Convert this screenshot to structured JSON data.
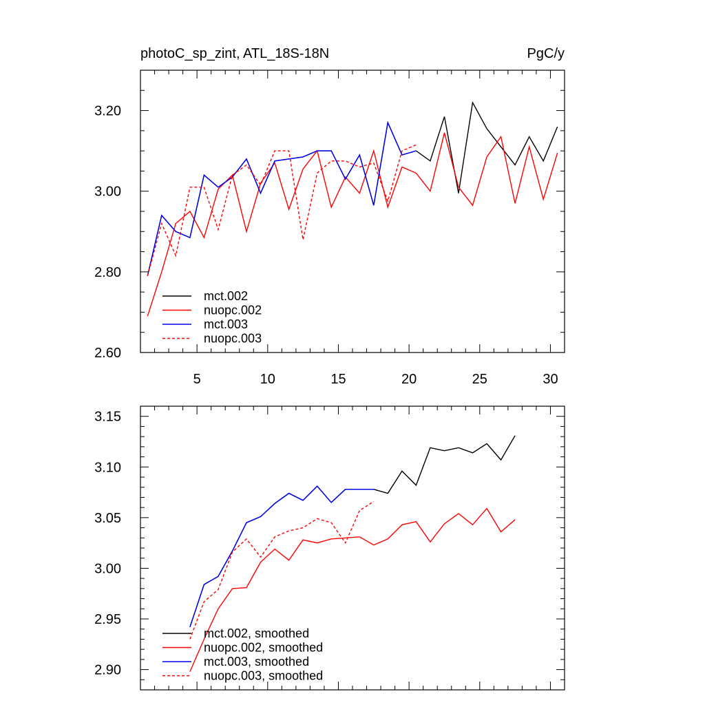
{
  "chart_data": [
    {
      "type": "line",
      "title": "photoC_sp_zint, ATL_18S-18N",
      "units": "PgC/y",
      "xlim": [
        1,
        31
      ],
      "ylim": [
        2.6,
        3.3
      ],
      "x_major_ticks": [
        5,
        10,
        15,
        20,
        25,
        30
      ],
      "x_tick_labels": [
        "5",
        "10",
        "15",
        "20",
        "25",
        "30"
      ],
      "y_major_ticks": [
        2.6,
        2.8,
        3.0,
        3.2
      ],
      "y_tick_labels": [
        "2.60",
        "2.80",
        "3.00",
        "3.20"
      ],
      "legend_placement": "bottom-left",
      "grid": false,
      "series": [
        {
          "name": "mct.002",
          "color": "#000000",
          "dash": "solid",
          "x": [
            1.5,
            2.5,
            3.5,
            4.5,
            5.5,
            6.5,
            7.5,
            8.5,
            9.5,
            10.5,
            11.5,
            12.5,
            13.5,
            14.5,
            15.5,
            16.5,
            17.5,
            18.5,
            19.5,
            20.5,
            21.5,
            22.5,
            23.5,
            24.5,
            25.5,
            26.5,
            27.5,
            28.5,
            29.5,
            30.5
          ],
          "y": [
            2.79,
            2.94,
            2.9,
            2.885,
            3.04,
            3.01,
            3.035,
            3.08,
            2.995,
            3.075,
            3.08,
            3.085,
            3.1,
            3.1,
            3.03,
            3.09,
            2.965,
            3.17,
            3.09,
            3.1,
            3.075,
            3.185,
            2.995,
            3.22,
            3.155,
            3.11,
            3.065,
            3.135,
            3.075,
            3.16
          ]
        },
        {
          "name": "nuopc.002",
          "color": "#ff0000",
          "dash": "solid",
          "x": [
            1.5,
            2.5,
            3.5,
            4.5,
            5.5,
            6.5,
            7.5,
            8.5,
            9.5,
            10.5,
            11.5,
            12.5,
            13.5,
            14.5,
            15.5,
            16.5,
            17.5,
            18.5,
            19.5,
            20.5,
            21.5,
            22.5,
            23.5,
            24.5,
            25.5,
            26.5,
            27.5,
            28.5,
            29.5,
            30.5
          ],
          "y": [
            2.69,
            2.8,
            2.92,
            2.95,
            2.885,
            3.005,
            3.04,
            2.9,
            3.02,
            3.07,
            2.955,
            3.055,
            3.1,
            2.96,
            3.035,
            2.995,
            3.1,
            2.96,
            3.06,
            3.045,
            3.0,
            3.145,
            3.01,
            2.965,
            3.085,
            3.135,
            2.97,
            3.11,
            2.98,
            3.095
          ]
        },
        {
          "name": "mct.003",
          "color": "#0000ff",
          "dash": "solid",
          "x": [
            1.5,
            2.5,
            3.5,
            4.5,
            5.5,
            6.5,
            7.5,
            8.5,
            9.5,
            10.5,
            11.5,
            12.5,
            13.5,
            14.5,
            15.5,
            16.5,
            17.5,
            18.5,
            19.5,
            20.5
          ],
          "y": [
            2.79,
            2.94,
            2.9,
            2.885,
            3.04,
            3.01,
            3.035,
            3.08,
            2.995,
            3.075,
            3.08,
            3.085,
            3.1,
            3.1,
            3.03,
            3.09,
            2.965,
            3.17,
            3.09,
            3.1
          ]
        },
        {
          "name": "nuopc.003",
          "color": "#ff0000",
          "dash": "dashed",
          "x": [
            1.5,
            2.5,
            3.5,
            4.5,
            5.5,
            6.5,
            7.5,
            8.5,
            9.5,
            10.5,
            11.5,
            12.5,
            13.5,
            14.5,
            15.5,
            16.5,
            17.5,
            18.5,
            19.5,
            20.5
          ],
          "y": [
            2.79,
            2.92,
            2.84,
            3.01,
            3.01,
            2.905,
            3.04,
            3.065,
            3.015,
            3.1,
            3.1,
            2.88,
            3.045,
            3.075,
            3.075,
            3.06,
            3.07,
            2.975,
            3.1,
            3.115
          ]
        }
      ]
    },
    {
      "type": "line",
      "title": "",
      "xlim": [
        1,
        31
      ],
      "ylim": [
        2.88,
        3.16
      ],
      "x_major_ticks": [
        5,
        10,
        15,
        20,
        25,
        30
      ],
      "x_tick_labels": [],
      "y_major_ticks": [
        2.9,
        2.95,
        3.0,
        3.05,
        3.1,
        3.15
      ],
      "y_tick_labels": [
        "2.90",
        "2.95",
        "3.00",
        "3.05",
        "3.10",
        "3.15"
      ],
      "legend_placement": "bottom-left",
      "grid": false,
      "series": [
        {
          "name": "mct.002, smoothed",
          "color": "#000000",
          "dash": "solid",
          "x": [
            4.5,
            5.5,
            6.5,
            7.5,
            8.5,
            9.5,
            10.5,
            11.5,
            12.5,
            13.5,
            14.5,
            15.5,
            16.5,
            17.5,
            18.5,
            19.5,
            20.5,
            21.5,
            22.5,
            23.5,
            24.5,
            25.5,
            26.5,
            27.5
          ],
          "y": [
            2.942,
            2.984,
            2.992,
            3.017,
            3.045,
            3.051,
            3.064,
            3.074,
            3.067,
            3.081,
            3.065,
            3.078,
            3.078,
            3.078,
            3.074,
            3.096,
            3.082,
            3.119,
            3.116,
            3.119,
            3.114,
            3.123,
            3.107,
            3.131
          ]
        },
        {
          "name": "nuopc.002, smoothed",
          "color": "#ff0000",
          "dash": "solid",
          "x": [
            4.5,
            5.5,
            6.5,
            7.5,
            8.5,
            9.5,
            10.5,
            11.5,
            12.5,
            13.5,
            14.5,
            15.5,
            16.5,
            17.5,
            18.5,
            19.5,
            20.5,
            21.5,
            22.5,
            23.5,
            24.5,
            25.5,
            26.5,
            27.5
          ],
          "y": [
            2.898,
            2.93,
            2.96,
            2.98,
            2.981,
            3.006,
            3.019,
            3.008,
            3.028,
            3.025,
            3.029,
            3.03,
            3.031,
            3.023,
            3.029,
            3.043,
            3.046,
            3.026,
            3.044,
            3.054,
            3.043,
            3.059,
            3.036,
            3.048
          ]
        },
        {
          "name": "mct.003, smoothed",
          "color": "#0000ff",
          "dash": "solid",
          "x": [
            4.5,
            5.5,
            6.5,
            7.5,
            8.5,
            9.5,
            10.5,
            11.5,
            12.5,
            13.5,
            14.5,
            15.5,
            16.5,
            17.5
          ],
          "y": [
            2.942,
            2.984,
            2.992,
            3.017,
            3.045,
            3.051,
            3.064,
            3.074,
            3.067,
            3.081,
            3.065,
            3.078,
            3.078,
            3.078
          ]
        },
        {
          "name": "nuopc.003, smoothed",
          "color": "#ff0000",
          "dash": "dashed",
          "x": [
            4.5,
            5.5,
            6.5,
            7.5,
            8.5,
            9.5,
            10.5,
            11.5,
            12.5,
            13.5,
            14.5,
            15.5,
            16.5,
            17.5
          ],
          "y": [
            2.93,
            2.967,
            2.979,
            3.016,
            3.029,
            3.011,
            3.031,
            3.037,
            3.04,
            3.049,
            3.045,
            3.025,
            3.057,
            3.066
          ]
        }
      ]
    }
  ]
}
